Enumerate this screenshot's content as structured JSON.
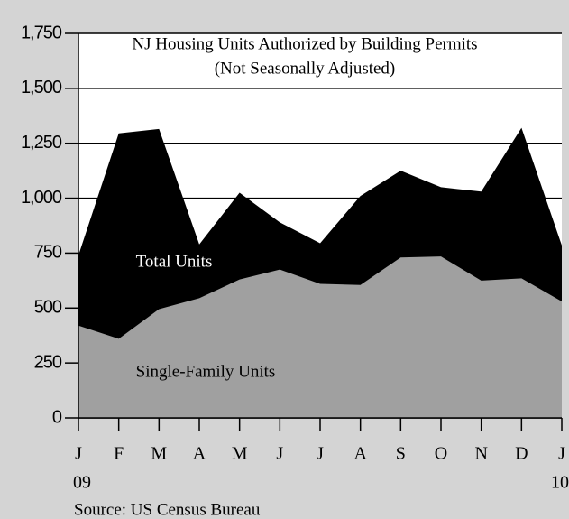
{
  "chart_data": {
    "type": "area",
    "title": "NJ Housing Units Authorized by Building Permits",
    "subtitle": "(Not Seasonally Adjusted)",
    "categories": [
      "J",
      "F",
      "M",
      "A",
      "M",
      "J",
      "J",
      "A",
      "S",
      "O",
      "N",
      "D",
      "J"
    ],
    "x_sublabels": [
      "09",
      null,
      null,
      null,
      null,
      null,
      null,
      null,
      null,
      null,
      null,
      null,
      "10"
    ],
    "series": [
      {
        "name": "Total Units",
        "color": "#000000",
        "values": [
          740,
          1295,
          1315,
          790,
          1025,
          890,
          795,
          1010,
          1125,
          1050,
          1030,
          1320,
          785
        ]
      },
      {
        "name": "Single-Family Units",
        "color": "#a0a0a0",
        "values": [
          420,
          360,
          495,
          545,
          630,
          675,
          610,
          605,
          730,
          735,
          625,
          635,
          530
        ]
      }
    ],
    "ylim": [
      0,
      1750
    ],
    "yticks": [
      0,
      250,
      500,
      750,
      {
        "value": 1000,
        "label": "1,000"
      },
      {
        "value": 1250,
        "label": "1,250"
      },
      {
        "value": 1500,
        "label": "1,500"
      },
      {
        "value": 1750,
        "label": "1,750"
      }
    ],
    "grid": true,
    "source": "Source: US Census Bureau"
  }
}
